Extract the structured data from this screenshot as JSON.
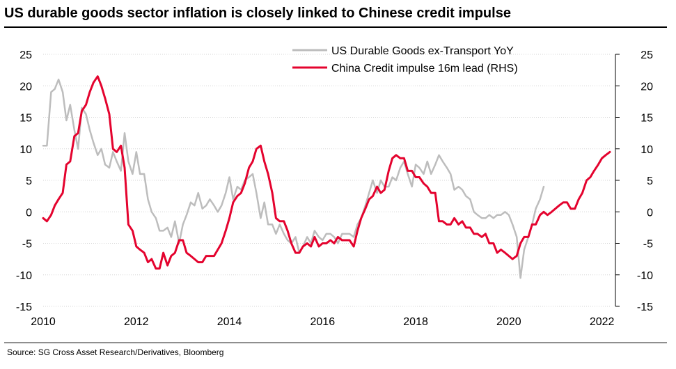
{
  "title": "US durable goods sector inflation is closely linked to Chinese credit impulse",
  "source": "Source: SG Cross Asset Research/Derivatives, Bloomberg",
  "chart_data": {
    "type": "line",
    "x_ticks": [
      2010,
      2012,
      2014,
      2016,
      2018,
      2020,
      2022
    ],
    "xlim": [
      2010,
      2022.2
    ],
    "y_left": {
      "ticks": [
        -15,
        -10,
        -5,
        0,
        5,
        10,
        15,
        20,
        25
      ],
      "ylim": [
        -15,
        25
      ]
    },
    "y_right": {
      "ticks": [
        -15,
        -10,
        -5,
        0,
        5,
        10,
        15,
        20,
        25
      ],
      "ylim": [
        -15,
        25
      ]
    },
    "grid": true,
    "legend_position": "top-right",
    "series": [
      {
        "name": "US Durable Goods ex-Transport YoY",
        "color": "#bdbdbd",
        "axis": "left",
        "points": [
          [
            2010.0,
            10.5
          ],
          [
            2010.08,
            10.5
          ],
          [
            2010.17,
            19
          ],
          [
            2010.25,
            19.5
          ],
          [
            2010.33,
            21
          ],
          [
            2010.42,
            19
          ],
          [
            2010.5,
            14.5
          ],
          [
            2010.58,
            17
          ],
          [
            2010.67,
            13
          ],
          [
            2010.75,
            10
          ],
          [
            2010.83,
            16.5
          ],
          [
            2010.92,
            15.5
          ],
          [
            2011.0,
            13
          ],
          [
            2011.08,
            11
          ],
          [
            2011.17,
            9
          ],
          [
            2011.25,
            10
          ],
          [
            2011.33,
            7.5
          ],
          [
            2011.42,
            7
          ],
          [
            2011.5,
            9.5
          ],
          [
            2011.58,
            8
          ],
          [
            2011.67,
            6.5
          ],
          [
            2011.75,
            12.5
          ],
          [
            2011.83,
            8
          ],
          [
            2011.92,
            6
          ],
          [
            2012.0,
            9.5
          ],
          [
            2012.08,
            6
          ],
          [
            2012.17,
            6
          ],
          [
            2012.25,
            2
          ],
          [
            2012.33,
            0
          ],
          [
            2012.42,
            -1
          ],
          [
            2012.5,
            -3
          ],
          [
            2012.58,
            -3
          ],
          [
            2012.67,
            -2.5
          ],
          [
            2012.75,
            -4
          ],
          [
            2012.83,
            -1.5
          ],
          [
            2012.92,
            -5
          ],
          [
            2013.0,
            -2
          ],
          [
            2013.08,
            -0.5
          ],
          [
            2013.17,
            1.5
          ],
          [
            2013.25,
            1
          ],
          [
            2013.33,
            3
          ],
          [
            2013.42,
            0.5
          ],
          [
            2013.5,
            1
          ],
          [
            2013.58,
            2
          ],
          [
            2013.67,
            1
          ],
          [
            2013.75,
            0
          ],
          [
            2013.83,
            1
          ],
          [
            2013.92,
            3
          ],
          [
            2014.0,
            5.5
          ],
          [
            2014.08,
            2
          ],
          [
            2014.17,
            4
          ],
          [
            2014.25,
            3.5
          ],
          [
            2014.33,
            5
          ],
          [
            2014.42,
            5.5
          ],
          [
            2014.5,
            6
          ],
          [
            2014.58,
            3
          ],
          [
            2014.67,
            -1
          ],
          [
            2014.75,
            1.5
          ],
          [
            2014.83,
            -2
          ],
          [
            2014.92,
            -2
          ],
          [
            2015.0,
            -3.5
          ],
          [
            2015.08,
            -2
          ],
          [
            2015.17,
            -3.5
          ],
          [
            2015.25,
            -4.5
          ],
          [
            2015.33,
            -5
          ],
          [
            2015.42,
            -4
          ],
          [
            2015.5,
            -6.5
          ],
          [
            2015.58,
            -5.5
          ],
          [
            2015.67,
            -4
          ],
          [
            2015.75,
            -5
          ],
          [
            2015.83,
            -3
          ],
          [
            2015.92,
            -4
          ],
          [
            2016.0,
            -4.5
          ],
          [
            2016.08,
            -3.5
          ],
          [
            2016.17,
            -3.5
          ],
          [
            2016.25,
            -4
          ],
          [
            2016.33,
            -5
          ],
          [
            2016.42,
            -3.5
          ],
          [
            2016.5,
            -3.5
          ],
          [
            2016.58,
            -3.5
          ],
          [
            2016.67,
            -4
          ],
          [
            2016.75,
            -2
          ],
          [
            2016.83,
            -1
          ],
          [
            2016.92,
            1
          ],
          [
            2017.0,
            3
          ],
          [
            2017.08,
            5
          ],
          [
            2017.17,
            3
          ],
          [
            2017.25,
            5
          ],
          [
            2017.33,
            4
          ],
          [
            2017.42,
            4
          ],
          [
            2017.5,
            5.5
          ],
          [
            2017.58,
            5
          ],
          [
            2017.67,
            7
          ],
          [
            2017.75,
            8
          ],
          [
            2017.83,
            6
          ],
          [
            2017.92,
            4
          ],
          [
            2018.0,
            7.5
          ],
          [
            2018.08,
            7
          ],
          [
            2018.17,
            6
          ],
          [
            2018.25,
            8
          ],
          [
            2018.33,
            6
          ],
          [
            2018.42,
            7.5
          ],
          [
            2018.5,
            9
          ],
          [
            2018.58,
            8
          ],
          [
            2018.67,
            7
          ],
          [
            2018.75,
            6
          ],
          [
            2018.83,
            3.5
          ],
          [
            2018.92,
            4
          ],
          [
            2019.0,
            3.5
          ],
          [
            2019.08,
            2.5
          ],
          [
            2019.17,
            2
          ],
          [
            2019.25,
            0
          ],
          [
            2019.33,
            -0.5
          ],
          [
            2019.42,
            -1
          ],
          [
            2019.5,
            -1
          ],
          [
            2019.58,
            -0.5
          ],
          [
            2019.67,
            -1
          ],
          [
            2019.75,
            -0.5
          ],
          [
            2019.83,
            -0.5
          ],
          [
            2019.92,
            0
          ],
          [
            2020.0,
            -0.5
          ],
          [
            2020.08,
            -2
          ],
          [
            2020.17,
            -4
          ],
          [
            2020.25,
            -10.5
          ],
          [
            2020.33,
            -6
          ],
          [
            2020.42,
            -4
          ],
          [
            2020.5,
            -2
          ],
          [
            2020.58,
            0.5
          ],
          [
            2020.67,
            2
          ],
          [
            2020.75,
            4
          ]
        ]
      },
      {
        "name": "China Credit impulse 16m lead (RHS)",
        "color": "#e4032e",
        "axis": "right",
        "points": [
          [
            2010.0,
            -1
          ],
          [
            2010.08,
            -1.5
          ],
          [
            2010.17,
            -0.5
          ],
          [
            2010.25,
            1
          ],
          [
            2010.33,
            2
          ],
          [
            2010.42,
            3
          ],
          [
            2010.5,
            7.5
          ],
          [
            2010.58,
            8
          ],
          [
            2010.67,
            12
          ],
          [
            2010.75,
            12.5
          ],
          [
            2010.83,
            16
          ],
          [
            2010.92,
            17
          ],
          [
            2011.0,
            19
          ],
          [
            2011.08,
            20.5
          ],
          [
            2011.17,
            21.5
          ],
          [
            2011.25,
            20
          ],
          [
            2011.33,
            18
          ],
          [
            2011.42,
            15.5
          ],
          [
            2011.5,
            10
          ],
          [
            2011.58,
            9.5
          ],
          [
            2011.67,
            10.5
          ],
          [
            2011.75,
            7
          ],
          [
            2011.83,
            -2
          ],
          [
            2011.92,
            -3
          ],
          [
            2012.0,
            -5.5
          ],
          [
            2012.08,
            -6
          ],
          [
            2012.17,
            -6.5
          ],
          [
            2012.25,
            -8
          ],
          [
            2012.33,
            -7.5
          ],
          [
            2012.42,
            -9
          ],
          [
            2012.5,
            -9
          ],
          [
            2012.58,
            -6.5
          ],
          [
            2012.67,
            -8.5
          ],
          [
            2012.75,
            -7
          ],
          [
            2012.83,
            -6.5
          ],
          [
            2012.92,
            -4.5
          ],
          [
            2013.0,
            -4.5
          ],
          [
            2013.08,
            -6.5
          ],
          [
            2013.17,
            -7
          ],
          [
            2013.25,
            -7.5
          ],
          [
            2013.33,
            -8
          ],
          [
            2013.42,
            -8
          ],
          [
            2013.5,
            -7
          ],
          [
            2013.58,
            -7
          ],
          [
            2013.67,
            -7
          ],
          [
            2013.75,
            -6
          ],
          [
            2013.83,
            -5
          ],
          [
            2013.92,
            -3
          ],
          [
            2014.0,
            -1
          ],
          [
            2014.08,
            1.5
          ],
          [
            2014.17,
            2.5
          ],
          [
            2014.25,
            3
          ],
          [
            2014.33,
            4.5
          ],
          [
            2014.42,
            7
          ],
          [
            2014.5,
            8
          ],
          [
            2014.58,
            10
          ],
          [
            2014.67,
            10.5
          ],
          [
            2014.75,
            8
          ],
          [
            2014.83,
            6
          ],
          [
            2014.92,
            3
          ],
          [
            2015.0,
            -1
          ],
          [
            2015.08,
            -1.5
          ],
          [
            2015.17,
            -1.5
          ],
          [
            2015.25,
            -3
          ],
          [
            2015.33,
            -5
          ],
          [
            2015.42,
            -6.5
          ],
          [
            2015.5,
            -6.5
          ],
          [
            2015.58,
            -5.5
          ],
          [
            2015.67,
            -5
          ],
          [
            2015.75,
            -5.5
          ],
          [
            2015.83,
            -4
          ],
          [
            2015.92,
            -5.5
          ],
          [
            2016.0,
            -5
          ],
          [
            2016.08,
            -5
          ],
          [
            2016.17,
            -4.5
          ],
          [
            2016.25,
            -5
          ],
          [
            2016.33,
            -4
          ],
          [
            2016.42,
            -4.5
          ],
          [
            2016.5,
            -4.5
          ],
          [
            2016.58,
            -4.5
          ],
          [
            2016.67,
            -5.5
          ],
          [
            2016.75,
            -3
          ],
          [
            2016.83,
            -1
          ],
          [
            2016.92,
            0.5
          ],
          [
            2017.0,
            2
          ],
          [
            2017.08,
            2.5
          ],
          [
            2017.17,
            4
          ],
          [
            2017.25,
            3
          ],
          [
            2017.33,
            3.5
          ],
          [
            2017.42,
            6.5
          ],
          [
            2017.5,
            8.5
          ],
          [
            2017.58,
            9
          ],
          [
            2017.67,
            8.5
          ],
          [
            2017.75,
            8.5
          ],
          [
            2017.83,
            6.5
          ],
          [
            2017.92,
            6.5
          ],
          [
            2018.0,
            5.5
          ],
          [
            2018.08,
            5.5
          ],
          [
            2018.17,
            4.5
          ],
          [
            2018.25,
            4
          ],
          [
            2018.33,
            3
          ],
          [
            2018.42,
            3
          ],
          [
            2018.5,
            -1.5
          ],
          [
            2018.58,
            -1.5
          ],
          [
            2018.67,
            -2
          ],
          [
            2018.75,
            -2
          ],
          [
            2018.83,
            -1
          ],
          [
            2018.92,
            -2
          ],
          [
            2019.0,
            -1.5
          ],
          [
            2019.08,
            -2.5
          ],
          [
            2019.17,
            -2.5
          ],
          [
            2019.25,
            -3.5
          ],
          [
            2019.33,
            -3.5
          ],
          [
            2019.42,
            -4
          ],
          [
            2019.5,
            -3.5
          ],
          [
            2019.58,
            -5
          ],
          [
            2019.67,
            -5
          ],
          [
            2019.75,
            -6.5
          ],
          [
            2019.83,
            -6
          ],
          [
            2019.92,
            -6.5
          ],
          [
            2020.0,
            -7
          ],
          [
            2020.08,
            -7.5
          ],
          [
            2020.17,
            -7
          ],
          [
            2020.25,
            -5
          ],
          [
            2020.33,
            -4
          ],
          [
            2020.42,
            -4
          ],
          [
            2020.5,
            -2
          ],
          [
            2020.58,
            -2
          ],
          [
            2020.67,
            -0.5
          ],
          [
            2020.75,
            0
          ],
          [
            2020.83,
            -0.5
          ],
          [
            2020.92,
            0
          ],
          [
            2021.0,
            0.5
          ],
          [
            2021.08,
            1
          ],
          [
            2021.17,
            1.5
          ],
          [
            2021.25,
            1.5
          ],
          [
            2021.33,
            0.5
          ],
          [
            2021.42,
            0.5
          ],
          [
            2021.5,
            2
          ],
          [
            2021.58,
            3
          ],
          [
            2021.67,
            5
          ],
          [
            2021.75,
            5.5
          ],
          [
            2021.83,
            6.5
          ],
          [
            2021.92,
            7.5
          ],
          [
            2022.0,
            8.5
          ],
          [
            2022.08,
            9
          ],
          [
            2022.17,
            9.5
          ]
        ]
      }
    ]
  }
}
